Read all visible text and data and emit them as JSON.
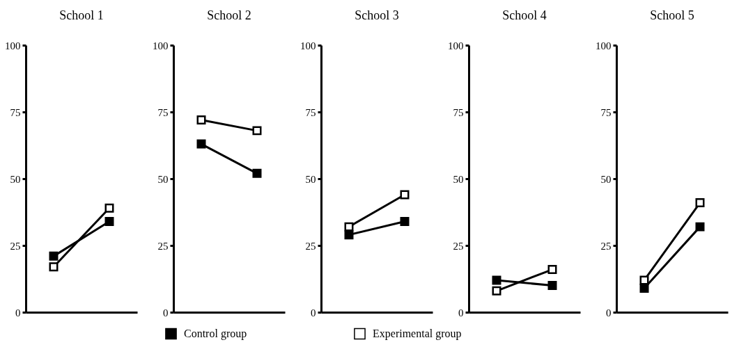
{
  "chart_data": [
    {
      "type": "line",
      "title": "School 1",
      "categories": [
        null,
        null
      ],
      "series": [
        {
          "name": "Control group",
          "color": "#000000",
          "values": [
            21,
            34
          ]
        },
        {
          "name": "Experimental group",
          "color": "#000000",
          "values": [
            17,
            39
          ]
        }
      ],
      "ylim": [
        0,
        100
      ],
      "yticks": [
        0,
        25,
        50,
        75,
        100
      ],
      "tick_labels": "y",
      "marker": "square",
      "legend": "bottom"
    },
    {
      "type": "line",
      "title": "School 2",
      "categories": [
        null,
        null
      ],
      "series": [
        {
          "name": "Control group",
          "color": "#000000",
          "values": [
            63,
            52
          ]
        },
        {
          "name": "Experimental group",
          "color": "#000000",
          "values": [
            72,
            68
          ]
        }
      ],
      "ylim": [
        0,
        100
      ],
      "yticks": [
        0,
        25,
        50,
        75,
        100
      ],
      "tick_labels": "y",
      "marker": "square",
      "legend": "bottom"
    },
    {
      "type": "line",
      "title": "School 3",
      "categories": [
        null,
        null
      ],
      "series": [
        {
          "name": "Control group",
          "color": "#000000",
          "values": [
            29,
            34
          ]
        },
        {
          "name": "Experimental group",
          "color": "#000000",
          "values": [
            32,
            44
          ]
        }
      ],
      "ylim": [
        0,
        100
      ],
      "yticks": [
        0,
        25,
        50,
        75,
        100
      ],
      "tick_labels": "y",
      "marker": "square",
      "legend": "bottom"
    },
    {
      "type": "line",
      "title": "School 4",
      "categories": [
        null,
        null
      ],
      "series": [
        {
          "name": "Control group",
          "color": "#000000",
          "values": [
            12,
            10
          ]
        },
        {
          "name": "Experimental group",
          "color": "#000000",
          "values": [
            8,
            16
          ]
        }
      ],
      "ylim": [
        0,
        100
      ],
      "yticks": [
        0,
        25,
        50,
        75,
        100
      ],
      "tick_labels": "y",
      "marker": "square",
      "legend": "bottom"
    },
    {
      "type": "line",
      "title": "School 5",
      "categories": [
        null,
        null
      ],
      "series": [
        {
          "name": "Control group",
          "color": "#000000",
          "values": [
            9,
            32
          ]
        },
        {
          "name": "Experimental group",
          "color": "#000000",
          "values": [
            12,
            41
          ]
        }
      ],
      "ylim": [
        0,
        100
      ],
      "yticks": [
        0,
        25,
        50,
        75,
        100
      ],
      "tick_labels": "y",
      "marker": "square",
      "legend": "bottom"
    }
  ]
}
